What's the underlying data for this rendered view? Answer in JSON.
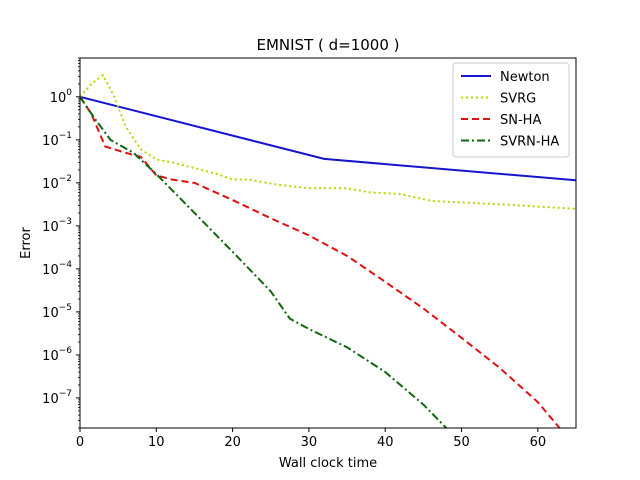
{
  "chart_data": {
    "type": "line",
    "title": "EMNIST ( d=1000 )",
    "xlabel": "Wall clock time",
    "ylabel": "Error",
    "xlim": [
      0,
      65
    ],
    "ylim": [
      2e-08,
      8
    ],
    "yscale": "log",
    "x_ticks": [
      0,
      10,
      20,
      30,
      40,
      50,
      60
    ],
    "y_ticks": [
      {
        "value": 1,
        "base": "10",
        "exp": "0"
      },
      {
        "value": 0.1,
        "base": "10",
        "exp": "−1"
      },
      {
        "value": 0.01,
        "base": "10",
        "exp": "−2"
      },
      {
        "value": 0.001,
        "base": "10",
        "exp": "−3"
      },
      {
        "value": 0.0001,
        "base": "10",
        "exp": "−4"
      },
      {
        "value": 1e-05,
        "base": "10",
        "exp": "−5"
      },
      {
        "value": 1e-06,
        "base": "10",
        "exp": "−6"
      },
      {
        "value": 1e-07,
        "base": "10",
        "exp": "−7"
      }
    ],
    "grid": false,
    "legend_position": "top-right",
    "series": [
      {
        "name": "Newton",
        "color": "#1515d0",
        "dash": "solid",
        "points": [
          [
            0,
            1.0
          ],
          [
            32,
            0.036
          ],
          [
            65,
            0.0115
          ]
        ]
      },
      {
        "name": "SVRG",
        "color": "#bcd400",
        "dash": "dotted",
        "points": [
          [
            0,
            1.0
          ],
          [
            1.5,
            2.0
          ],
          [
            3,
            3.2
          ],
          [
            4.5,
            1.0
          ],
          [
            6,
            0.2
          ],
          [
            8,
            0.06
          ],
          [
            10,
            0.035
          ],
          [
            12,
            0.03
          ],
          [
            15,
            0.022
          ],
          [
            18,
            0.016
          ],
          [
            20,
            0.012
          ],
          [
            22,
            0.012
          ],
          [
            26,
            0.009
          ],
          [
            30,
            0.0075
          ],
          [
            35,
            0.0075
          ],
          [
            38,
            0.006
          ],
          [
            42,
            0.0055
          ],
          [
            46,
            0.0038
          ],
          [
            50,
            0.0035
          ],
          [
            55,
            0.0032
          ],
          [
            60,
            0.0028
          ],
          [
            65,
            0.0025
          ]
        ]
      },
      {
        "name": "SN-HA",
        "color": "#e01010",
        "dash": "dashed",
        "points": [
          [
            0,
            1.0
          ],
          [
            1.5,
            0.4
          ],
          [
            3.3,
            0.07
          ],
          [
            6,
            0.05
          ],
          [
            8,
            0.04
          ],
          [
            10,
            0.015
          ],
          [
            12,
            0.012
          ],
          [
            15,
            0.01
          ],
          [
            20,
            0.004
          ],
          [
            25,
            0.0015
          ],
          [
            30,
            0.0006
          ],
          [
            35,
            0.0002
          ],
          [
            40,
            5e-05
          ],
          [
            45,
            1.2e-05
          ],
          [
            50,
            2.5e-06
          ],
          [
            55,
            5e-07
          ],
          [
            60,
            8e-08
          ],
          [
            65,
            7e-09
          ]
        ]
      },
      {
        "name": "SVRN-HA",
        "color": "#116611",
        "dash": "dashdot",
        "points": [
          [
            0,
            1.0
          ],
          [
            2,
            0.3
          ],
          [
            4,
            0.1
          ],
          [
            7,
            0.05
          ],
          [
            10,
            0.016
          ],
          [
            15,
            0.002
          ],
          [
            20,
            0.00025
          ],
          [
            25,
            3e-05
          ],
          [
            27.5,
            7e-06
          ],
          [
            30,
            4e-06
          ],
          [
            35,
            1.5e-06
          ],
          [
            40,
            4e-07
          ],
          [
            45,
            7e-08
          ],
          [
            48,
            2e-08
          ]
        ]
      }
    ]
  }
}
